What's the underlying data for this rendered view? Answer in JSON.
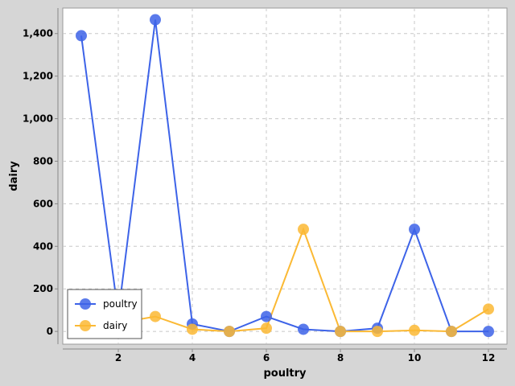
{
  "chart_data": {
    "type": "line",
    "title": "",
    "xlabel": "poultry",
    "ylabel": "dairy",
    "x": [
      1,
      2,
      3,
      4,
      5,
      6,
      7,
      8,
      9,
      10,
      11,
      12
    ],
    "xlim": [
      0.5,
      12.5
    ],
    "ylim": [
      -60,
      1520
    ],
    "xticks": [
      2,
      4,
      6,
      8,
      10,
      12
    ],
    "yticks": [
      0,
      200,
      400,
      600,
      800,
      1000,
      1200,
      1400
    ],
    "ytick_labels": [
      "0",
      "200",
      "400",
      "600",
      "800",
      "1,000",
      "1,200",
      "1,400"
    ],
    "grid": true,
    "legend_position": "bottom-left",
    "series": [
      {
        "name": "poultry",
        "color": "#3d63e8",
        "values": [
          1390,
          80,
          1465,
          35,
          0,
          70,
          10,
          0,
          15,
          480,
          0,
          0
        ]
      },
      {
        "name": "dairy",
        "color": "#fbb934",
        "values": [
          25,
          40,
          70,
          10,
          0,
          15,
          480,
          0,
          0,
          5,
          0,
          105
        ]
      }
    ]
  }
}
